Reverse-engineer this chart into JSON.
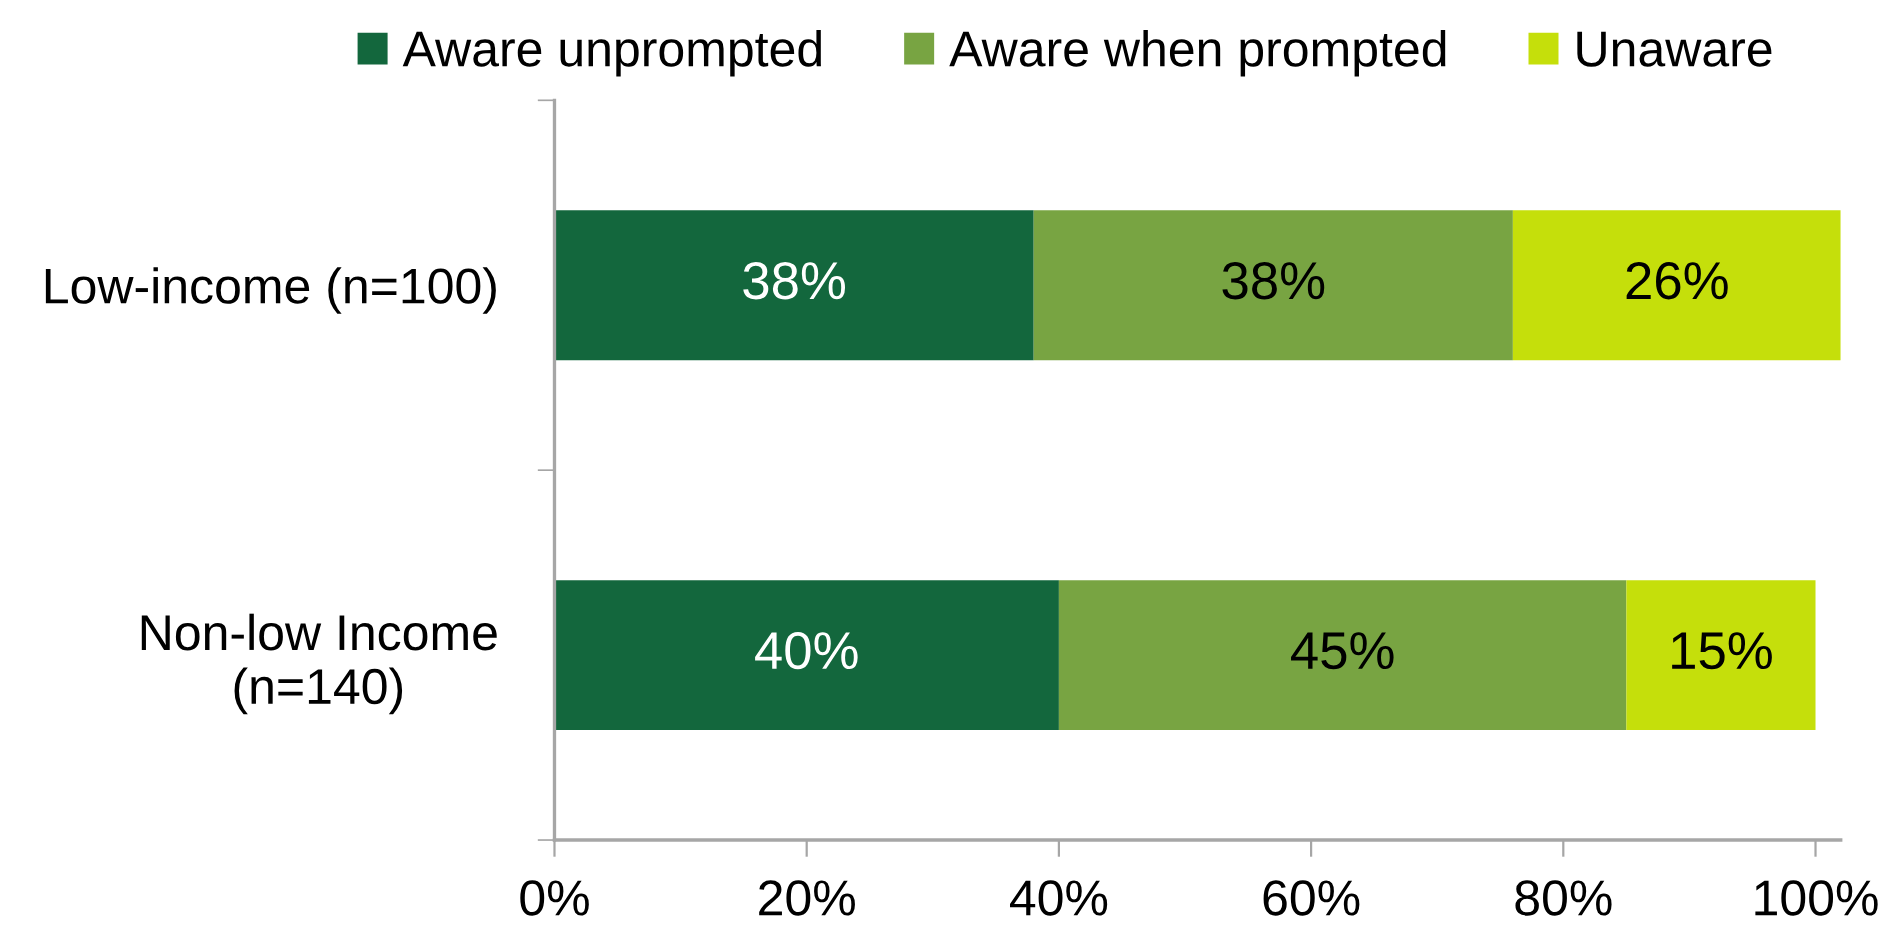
{
  "chart_data": {
    "type": "bar",
    "orientation": "horizontal",
    "stacked": true,
    "categories": [
      "Low-income (n=100)",
      "Non-low Income\n(n=140)"
    ],
    "series": [
      {
        "name": "Aware unprompted",
        "color": "#13673d",
        "values": [
          38,
          40
        ],
        "value_labels": [
          "38%",
          "40%"
        ]
      },
      {
        "name": "Aware when prompted",
        "color": "#78a442",
        "values": [
          38,
          45
        ],
        "value_labels": [
          "38%",
          "45%"
        ]
      },
      {
        "name": "Unaware",
        "color": "#c5df0b",
        "values": [
          26,
          15
        ],
        "value_labels": [
          "26%",
          "15%"
        ]
      }
    ],
    "xlim": [
      0,
      102
    ],
    "xticks": [
      {
        "value": 0,
        "label": "0%"
      },
      {
        "value": 20,
        "label": "20%"
      },
      {
        "value": 40,
        "label": "40%"
      },
      {
        "value": 60,
        "label": "60%"
      },
      {
        "value": 80,
        "label": "80%"
      },
      {
        "value": 100,
        "label": "100%"
      }
    ],
    "legend": "top",
    "grid": false
  }
}
